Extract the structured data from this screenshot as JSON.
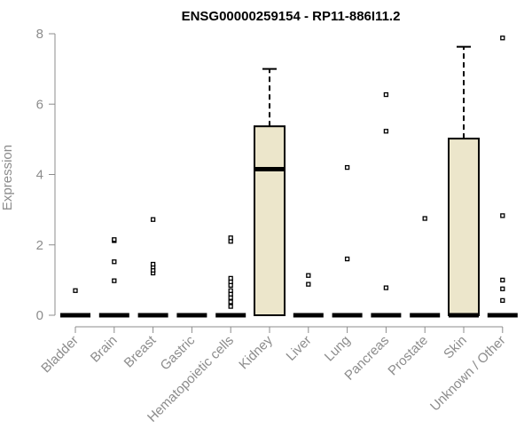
{
  "chart_data": {
    "type": "boxplot",
    "title": "ENSG00000259154 - RP11-886I11.2",
    "ylabel": "Expression",
    "xlabel": "",
    "ylim": [
      0,
      8
    ],
    "yticks": [
      "0",
      "2",
      "4",
      "6",
      "8"
    ],
    "grid": false,
    "colors": {
      "box_fill": "#ece6cb",
      "stroke": "#000000",
      "axis": "#8c8c8c",
      "text": "#8c8c8c"
    },
    "categories": [
      "Bladder",
      "Brain",
      "Breast",
      "Gastric",
      "Hematopoietic cells",
      "Kidney",
      "Liver",
      "Lung",
      "Pancreas",
      "Prostate",
      "Skin",
      "Unknown / Other"
    ],
    "boxes": [
      {
        "category": "Bladder",
        "q1": 0,
        "median": 0,
        "q3": 0,
        "whisker_low": 0,
        "whisker_high": 0,
        "outliers": [
          0.7
        ]
      },
      {
        "category": "Brain",
        "q1": 0,
        "median": 0,
        "q3": 0,
        "whisker_low": 0,
        "whisker_high": 0,
        "outliers": [
          0.98,
          1.52,
          2.12,
          2.15
        ]
      },
      {
        "category": "Breast",
        "q1": 0,
        "median": 0,
        "q3": 0,
        "whisker_low": 0,
        "whisker_high": 0,
        "outliers": [
          1.2,
          1.28,
          1.37,
          1.45,
          2.72
        ]
      },
      {
        "category": "Gastric",
        "q1": 0,
        "median": 0,
        "q3": 0,
        "whisker_low": 0,
        "whisker_high": 0,
        "outliers": []
      },
      {
        "category": "Hematopoietic cells",
        "q1": 0,
        "median": 0,
        "q3": 0,
        "whisker_low": 0,
        "whisker_high": 0,
        "outliers": [
          0.25,
          0.38,
          0.5,
          0.6,
          0.7,
          0.85,
          0.95,
          1.05,
          2.1,
          2.2
        ]
      },
      {
        "category": "Kidney",
        "q1": 0,
        "median": 4.15,
        "q3": 5.37,
        "whisker_low": 0,
        "whisker_high": 7.0,
        "outliers": []
      },
      {
        "category": "Liver",
        "q1": 0,
        "median": 0,
        "q3": 0,
        "whisker_low": 0,
        "whisker_high": 0,
        "outliers": [
          0.88,
          1.13
        ]
      },
      {
        "category": "Lung",
        "q1": 0,
        "median": 0,
        "q3": 0,
        "whisker_low": 0,
        "whisker_high": 0,
        "outliers": [
          1.6,
          4.2
        ]
      },
      {
        "category": "Pancreas",
        "q1": 0,
        "median": 0,
        "q3": 0,
        "whisker_low": 0,
        "whisker_high": 0,
        "outliers": [
          0.78,
          5.23,
          6.27
        ]
      },
      {
        "category": "Prostate",
        "q1": 0,
        "median": 0,
        "q3": 0,
        "whisker_low": 0,
        "whisker_high": 0,
        "outliers": [
          2.75
        ]
      },
      {
        "category": "Skin",
        "q1": 0,
        "median": 0,
        "q3": 5.02,
        "whisker_low": 0,
        "whisker_high": 7.63,
        "outliers": []
      },
      {
        "category": "Unknown / Other",
        "q1": 0,
        "median": 0,
        "q3": 0,
        "whisker_low": 0,
        "whisker_high": 0,
        "outliers": [
          0.42,
          0.75,
          1.0,
          2.83,
          7.88
        ]
      }
    ]
  }
}
